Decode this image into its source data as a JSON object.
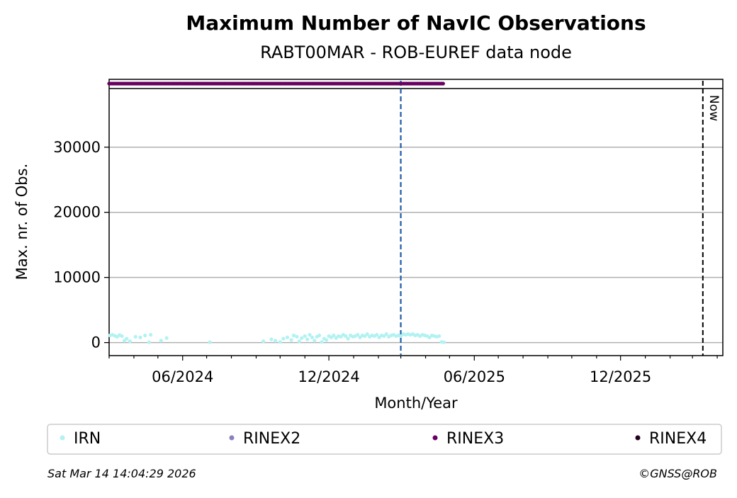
{
  "chart_data": {
    "type": "scatter",
    "title": "Maximum Number of NavIC Observations",
    "subtitle": "RABT00MAR - ROB-EUREF data node",
    "xlabel": "Month/Year",
    "ylabel": "Max. nr. of Obs.",
    "x_axis": {
      "type": "date",
      "min": "2024-03-01",
      "max": "2026-04-08",
      "tick_labels": [
        "06/2024",
        "12/2024",
        "06/2025",
        "12/2025"
      ]
    },
    "y_axis": {
      "min": -2000,
      "max": 39000,
      "ticks": [
        0,
        10000,
        20000,
        30000
      ]
    },
    "grid": "horizontal",
    "reference_lines": {
      "blue_date": "2025-03-01",
      "now_date": "2026-03-14",
      "now_label": "Now"
    },
    "series": [
      {
        "name": "IRN",
        "color": "#b3f2f2",
        "points": [
          [
            "2024-03-02",
            1100
          ],
          [
            "2024-03-05",
            1200
          ],
          [
            "2024-03-08",
            1050
          ],
          [
            "2024-03-11",
            900
          ],
          [
            "2024-03-14",
            1150
          ],
          [
            "2024-03-17",
            1000
          ],
          [
            "2024-03-20",
            300
          ],
          [
            "2024-03-23",
            600
          ],
          [
            "2024-03-27",
            200
          ],
          [
            "2024-04-03",
            900
          ],
          [
            "2024-04-09",
            800
          ],
          [
            "2024-04-15",
            1100
          ],
          [
            "2024-04-20",
            50
          ],
          [
            "2024-04-22",
            1200
          ],
          [
            "2024-05-05",
            300
          ],
          [
            "2024-05-12",
            700
          ],
          [
            "2024-07-05",
            50
          ],
          [
            "2024-09-10",
            200
          ],
          [
            "2024-09-20",
            500
          ],
          [
            "2024-09-25",
            300
          ],
          [
            "2024-10-01",
            100
          ],
          [
            "2024-10-05",
            600
          ],
          [
            "2024-10-10",
            800
          ],
          [
            "2024-10-15",
            400
          ],
          [
            "2024-10-18",
            1100
          ],
          [
            "2024-10-22",
            900
          ],
          [
            "2024-10-25",
            200
          ],
          [
            "2024-10-28",
            700
          ],
          [
            "2024-11-01",
            1000
          ],
          [
            "2024-11-04",
            500
          ],
          [
            "2024-11-07",
            1200
          ],
          [
            "2024-11-10",
            800
          ],
          [
            "2024-11-13",
            300
          ],
          [
            "2024-11-16",
            900
          ],
          [
            "2024-11-19",
            1100
          ],
          [
            "2024-11-22",
            100
          ],
          [
            "2024-11-25",
            600
          ],
          [
            "2024-11-28",
            400
          ],
          [
            "2024-12-01",
            1000
          ],
          [
            "2024-12-04",
            800
          ],
          [
            "2024-12-07",
            1100
          ],
          [
            "2024-12-10",
            700
          ],
          [
            "2024-12-13",
            1000
          ],
          [
            "2024-12-16",
            900
          ],
          [
            "2024-12-19",
            1200
          ],
          [
            "2024-12-22",
            1000
          ],
          [
            "2024-12-25",
            600
          ],
          [
            "2024-12-28",
            1100
          ],
          [
            "2024-12-31",
            900
          ],
          [
            "2025-01-03",
            1000
          ],
          [
            "2025-01-06",
            1200
          ],
          [
            "2025-01-09",
            800
          ],
          [
            "2025-01-12",
            1100
          ],
          [
            "2025-01-15",
            1000
          ],
          [
            "2025-01-18",
            1300
          ],
          [
            "2025-01-21",
            900
          ],
          [
            "2025-01-24",
            1100
          ],
          [
            "2025-01-27",
            1000
          ],
          [
            "2025-01-30",
            1200
          ],
          [
            "2025-02-02",
            800
          ],
          [
            "2025-02-05",
            1100
          ],
          [
            "2025-02-08",
            1000
          ],
          [
            "2025-02-11",
            1300
          ],
          [
            "2025-02-14",
            900
          ],
          [
            "2025-02-17",
            1100
          ],
          [
            "2025-02-20",
            1200
          ],
          [
            "2025-02-23",
            1000
          ],
          [
            "2025-02-26",
            1100
          ],
          [
            "2025-03-01",
            1000
          ],
          [
            "2025-03-04",
            1300
          ],
          [
            "2025-03-07",
            1200
          ],
          [
            "2025-03-10",
            1300
          ],
          [
            "2025-03-13",
            1200
          ],
          [
            "2025-03-16",
            1300
          ],
          [
            "2025-03-19",
            1100
          ],
          [
            "2025-03-22",
            1200
          ],
          [
            "2025-03-25",
            1000
          ],
          [
            "2025-03-28",
            1200
          ],
          [
            "2025-03-31",
            1100
          ],
          [
            "2025-04-03",
            1000
          ],
          [
            "2025-04-06",
            800
          ],
          [
            "2025-04-09",
            1100
          ],
          [
            "2025-04-12",
            1000
          ],
          [
            "2025-04-15",
            900
          ],
          [
            "2025-04-18",
            1000
          ],
          [
            "2025-04-21",
            100
          ],
          [
            "2025-04-24",
            50
          ]
        ]
      },
      {
        "name": "RINEX2",
        "color": "#8c7fc0",
        "points": []
      },
      {
        "name": "RINEX3",
        "color": "#670060",
        "range": [
          "2024-03-01",
          "2025-04-24"
        ],
        "y_position": "above plotted range"
      },
      {
        "name": "RINEX4",
        "color": "#23001e",
        "points": []
      }
    ]
  },
  "footer": {
    "timestamp": "Sat Mar 14 14:04:29 2026",
    "copyright": "©GNSS@ROB"
  }
}
